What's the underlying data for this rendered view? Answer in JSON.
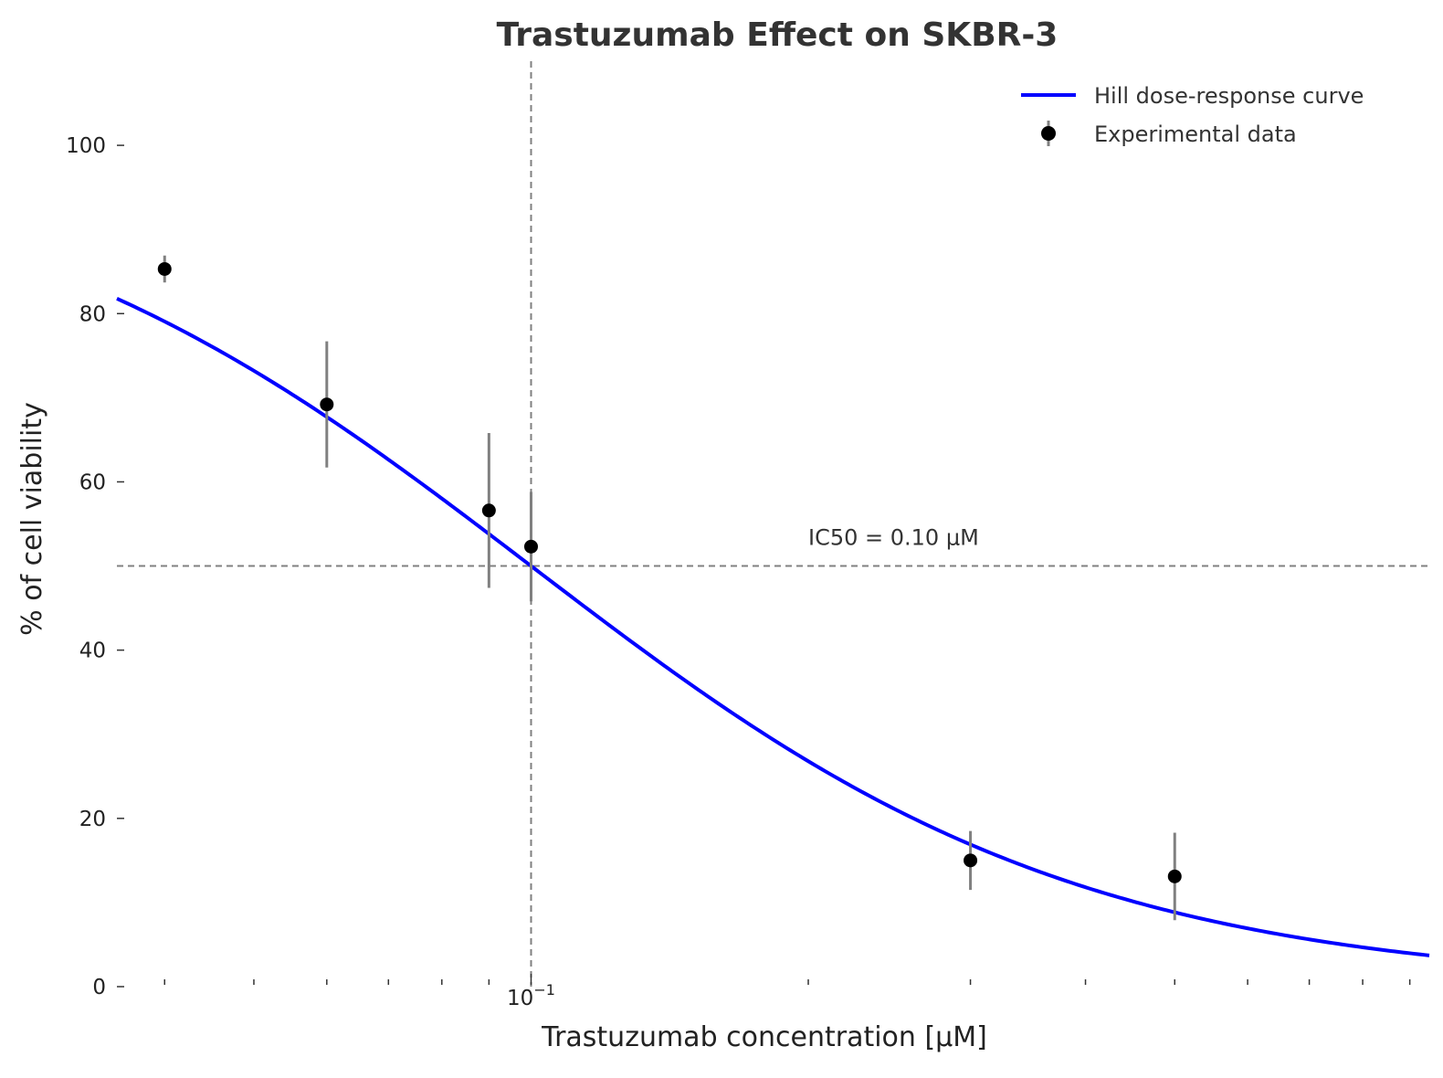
{
  "chart_data": {
    "type": "line",
    "title": "Trastuzumab Effect on SKBR-3",
    "xlabel": "Trastuzumab concentration [μM]",
    "ylabel": "% of cell viability",
    "x_scale": "log",
    "xlim": [
      0.0355,
      0.945
    ],
    "ylim": [
      0,
      110
    ],
    "y_ticks": [
      0,
      20,
      40,
      60,
      80,
      100
    ],
    "x_major_tick_base": "10",
    "x_major_tick_exponent": "−1",
    "x_major_tick_values": [
      0.1
    ],
    "x_minor_tick_values": [
      0.04,
      0.05,
      0.06,
      0.07,
      0.08,
      0.09,
      0.2,
      0.3,
      0.4,
      0.5,
      0.6,
      0.7,
      0.8,
      0.9
    ],
    "legend_position": "top-right",
    "colors": {
      "curve": "#0000ff",
      "points": "#000000",
      "errorbars": "#808080",
      "reference_lines": "#808080"
    },
    "series": [
      {
        "name": "Hill dose-response curve",
        "kind": "curve",
        "ic50": 0.1,
        "hill_slope": 1.45,
        "top": 100,
        "bottom": 0
      },
      {
        "name": "Experimental data",
        "kind": "errorbar",
        "x": [
          0.04,
          0.06,
          0.09,
          0.1,
          0.3,
          0.5
        ],
        "y": [
          85.3,
          69.2,
          56.6,
          52.3,
          15.0,
          13.1
        ],
        "yerr": [
          1.6,
          7.5,
          9.2,
          6.5,
          3.5,
          5.2
        ]
      }
    ],
    "reference_lines": {
      "horizontal_y": 50,
      "vertical_x": 0.1
    },
    "annotation": {
      "text": "IC50 = 0.10 μM",
      "x": 0.2,
      "y": 52.5
    }
  }
}
